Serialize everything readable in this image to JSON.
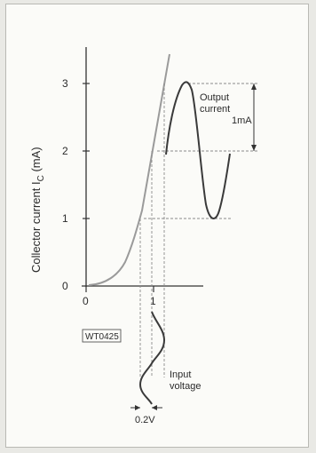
{
  "figure": {
    "y_axis_label_main": "Collector current I",
    "y_axis_label_sub": "C",
    "y_axis_label_unit": " (mA)",
    "y_ticks": [
      "0",
      "1",
      "2",
      "3"
    ],
    "x_ticks": [
      "0",
      "1"
    ],
    "output_label_line1": "Output",
    "output_label_line2": "current",
    "output_amplitude": "1mA",
    "input_label_line1": "Input",
    "input_label_line2": "voltage",
    "input_amplitude": "0.2V",
    "code": "WT0425",
    "colors": {
      "curve": "#9a9a9a",
      "wave": "#3a3a3a",
      "guide": "#8a8a8a"
    }
  }
}
